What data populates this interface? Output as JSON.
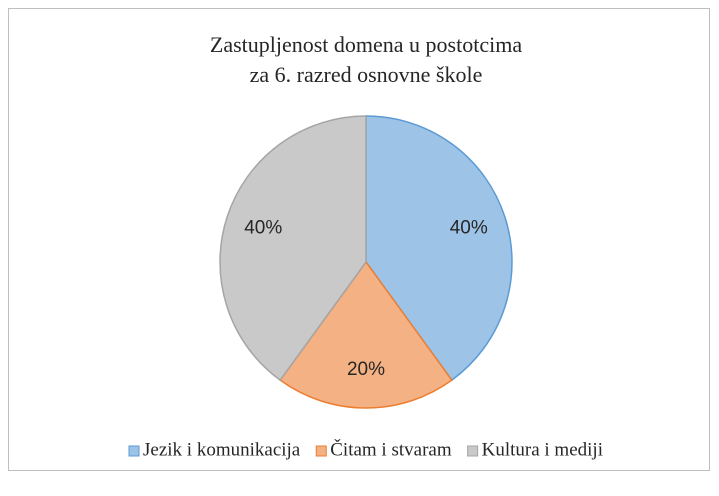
{
  "chart_data": {
    "type": "pie",
    "title": [
      "Zastupljenost  domena u postotcima",
      "za 6. razred  osnovne škole"
    ],
    "categories": [
      "Jezik i komunikacija",
      "Čitam i stvaram",
      "Kultura i mediji"
    ],
    "values": [
      40,
      20,
      40
    ],
    "value_labels": [
      "40%",
      "20%",
      "40%"
    ],
    "colors": [
      "#9dc3e6",
      "#f4b183",
      "#c9c9c9"
    ],
    "edge_colors": [
      "#5b9bd5",
      "#ed7d31",
      "#a5a5a5"
    ],
    "legend": "bottom"
  }
}
